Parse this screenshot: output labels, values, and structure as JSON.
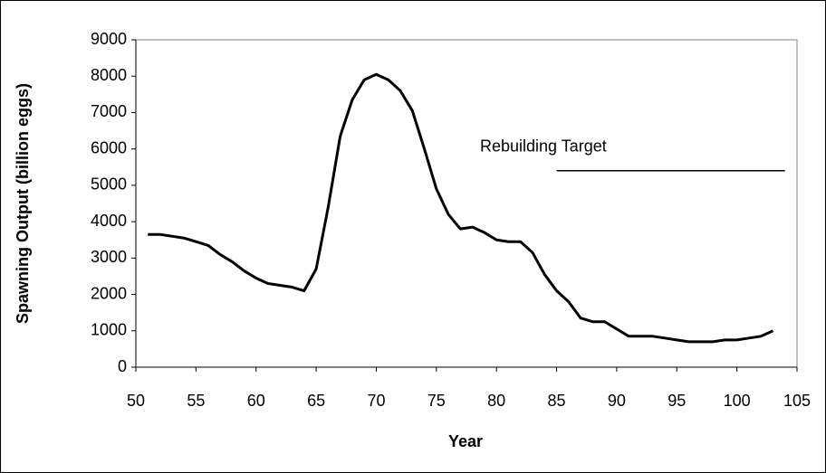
{
  "chart_data": {
    "type": "line",
    "xlabel": "Year",
    "ylabel": "Spawning Output (billion eggs)",
    "x": [
      51,
      52,
      53,
      54,
      55,
      56,
      57,
      58,
      59,
      60,
      61,
      62,
      63,
      64,
      65,
      66,
      67,
      68,
      69,
      70,
      71,
      72,
      73,
      74,
      75,
      76,
      77,
      78,
      79,
      80,
      81,
      82,
      83,
      84,
      85,
      86,
      87,
      88,
      89,
      90,
      91,
      92,
      93,
      94,
      95,
      96,
      97,
      98,
      99,
      100,
      101,
      102,
      103
    ],
    "series": [
      {
        "color": "#000000",
        "values": [
          3650,
          3650,
          3600,
          3550,
          3450,
          3350,
          3100,
          2900,
          2650,
          2450,
          2300,
          2250,
          2200,
          2100,
          2700,
          4400,
          6350,
          7350,
          7900,
          8050,
          7900,
          7600,
          7050,
          6000,
          4900,
          4200,
          3800,
          3850,
          3700,
          3500,
          3450,
          3450,
          3150,
          2550,
          2100,
          1800,
          1350,
          1250,
          1250,
          1050,
          850,
          850,
          850,
          800,
          750,
          700,
          700,
          700,
          750,
          750,
          800,
          850,
          1000
        ]
      }
    ],
    "target": {
      "label": "Rebuilding Target",
      "value": 5400,
      "x": [
        85,
        104
      ]
    },
    "xlim": [
      50,
      105
    ],
    "xticks": [
      50,
      55,
      60,
      65,
      70,
      75,
      80,
      85,
      90,
      95,
      100,
      105
    ],
    "ylim": [
      0,
      9000
    ],
    "yticks": [
      0,
      1000,
      2000,
      3000,
      4000,
      5000,
      6000,
      7000,
      8000,
      9000
    ]
  }
}
